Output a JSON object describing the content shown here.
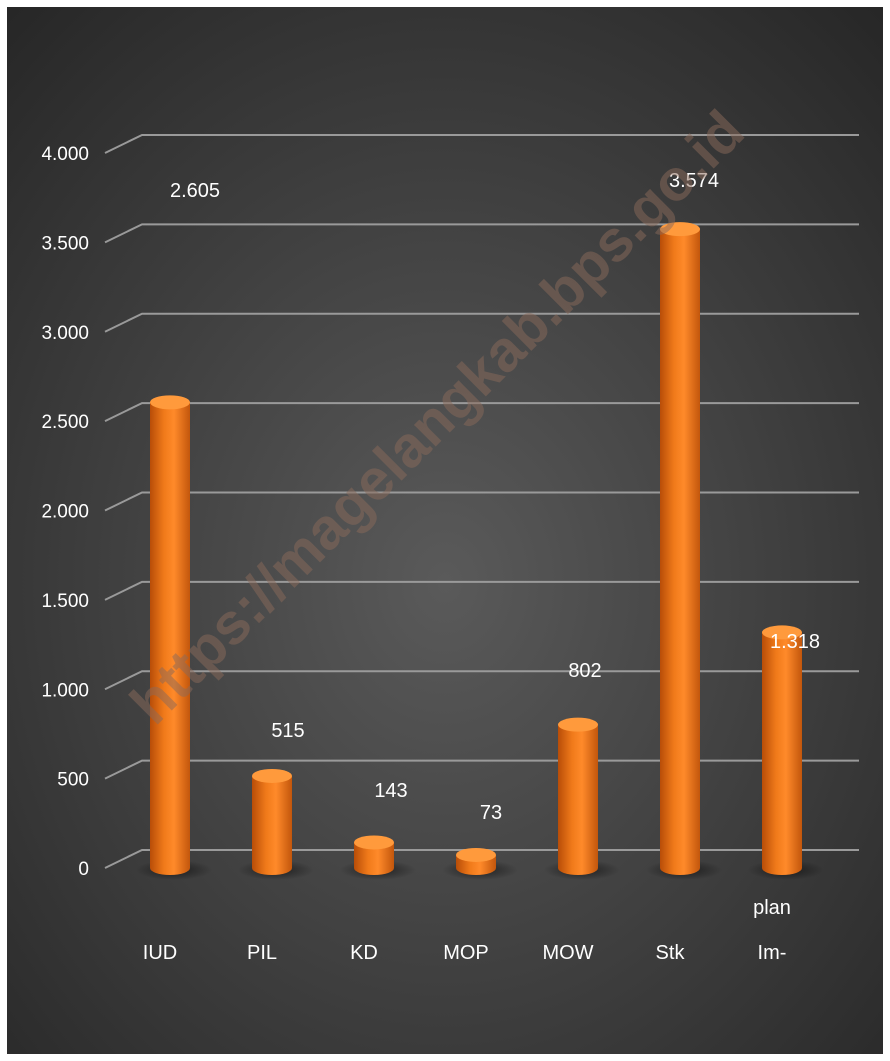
{
  "chart_data": {
    "type": "bar",
    "categories": [
      "IUD",
      "PIL",
      "KD",
      "MOP",
      "MOW",
      "Stk",
      "Im-plan"
    ],
    "category_labels": [
      [
        "IUD"
      ],
      [
        "PIL"
      ],
      [
        "KD"
      ],
      [
        "MOP"
      ],
      [
        "MOW"
      ],
      [
        "Stk"
      ],
      [
        "plan",
        "Im-"
      ]
    ],
    "values": [
      2605,
      515,
      143,
      73,
      802,
      3574,
      1318
    ],
    "value_labels": [
      "2.605",
      "515",
      "143",
      "73",
      "802",
      "3.574",
      "1.318"
    ],
    "yticks": [
      0,
      500,
      1000,
      1500,
      2000,
      2500,
      3000,
      3500,
      4000
    ],
    "ytick_labels": [
      "0",
      "500",
      "1.000",
      "1.500",
      "2.000",
      "2.500",
      "3.000",
      "3.500",
      "4.000"
    ],
    "ylim": [
      0,
      4000
    ],
    "grid": true,
    "title": "",
    "xlabel": "",
    "ylabel": "",
    "colors": {
      "bar": "#f07a1a",
      "bar_dark": "#b84d08",
      "bar_top": "#ff9a3c",
      "background_center": "#5a5a5a",
      "background_edge": "#262626",
      "gridline": "#9a9a9a",
      "text": "#ffffff"
    }
  },
  "watermark": "https://magelangkab.bps.go.id"
}
